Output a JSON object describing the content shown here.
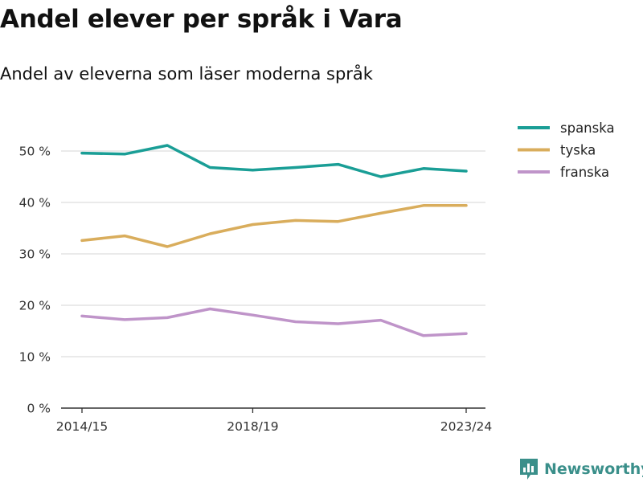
{
  "header": {
    "title": "Andel elever per språk i Vara",
    "subtitle": "Andel av eleverna som läser moderna språk"
  },
  "brand": {
    "name": "Newsworthy"
  },
  "colors": {
    "spanska": "#1a9e96",
    "tyska": "#d9ad5c",
    "franska": "#bf94c9",
    "grid": "#dddddd",
    "axis": "#333333"
  },
  "chart_data": {
    "type": "line",
    "x": [
      "2014/15",
      "2015/16",
      "2016/17",
      "2017/18",
      "2018/19",
      "2019/20",
      "2020/21",
      "2021/22",
      "2022/23",
      "2023/24"
    ],
    "x_tick_labels": [
      "2014/15",
      "2018/19",
      "2023/24"
    ],
    "ylim": [
      0,
      50
    ],
    "y_ticks": [
      0,
      10,
      20,
      30,
      40,
      50
    ],
    "y_tick_labels": [
      "0 %",
      "10 %",
      "20 %",
      "30 %",
      "40 %",
      "50 %"
    ],
    "legend_position": "top-right",
    "grid": true,
    "series": [
      {
        "name": "spanska",
        "color": "#1a9e96",
        "values": [
          49.6,
          49.4,
          51.1,
          46.8,
          46.3,
          46.8,
          47.4,
          45.0,
          46.6,
          46.1
        ]
      },
      {
        "name": "tyska",
        "color": "#d9ad5c",
        "values": [
          32.6,
          33.5,
          31.4,
          33.9,
          35.7,
          36.5,
          36.3,
          37.9,
          39.4,
          39.4
        ]
      },
      {
        "name": "franska",
        "color": "#bf94c9",
        "values": [
          17.9,
          17.2,
          17.6,
          19.3,
          18.1,
          16.8,
          16.4,
          17.1,
          14.1,
          14.5
        ]
      }
    ]
  }
}
